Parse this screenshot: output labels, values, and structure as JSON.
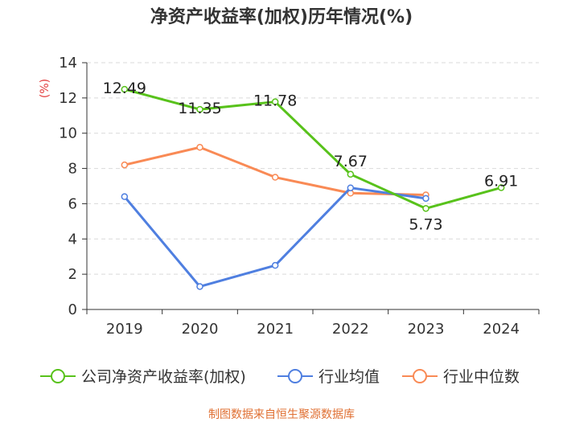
{
  "chart_data": {
    "type": "line",
    "title": "净资产收益率(加权)历年情况(%)",
    "ylabel": "(%)",
    "xlabel": "",
    "categories": [
      "2019",
      "2020",
      "2021",
      "2022",
      "2023",
      "2024"
    ],
    "ylim": [
      0,
      14
    ],
    "yticks": [
      0,
      2,
      4,
      6,
      8,
      10,
      12,
      14
    ],
    "grid": true,
    "legend_position": "bottom",
    "series": [
      {
        "name": "公司净资产收益率(加权)",
        "color": "#58c21b",
        "values": [
          12.49,
          11.35,
          11.78,
          7.67,
          5.73,
          6.91
        ],
        "labels": [
          "12.49",
          "11.35",
          "11.78",
          "7.67",
          "5.73",
          "6.91"
        ]
      },
      {
        "name": "行业均值",
        "color": "#4f7fe0",
        "values": [
          6.4,
          1.3,
          2.5,
          6.9,
          6.3,
          null
        ]
      },
      {
        "name": "行业中位数",
        "color": "#f98a55",
        "values": [
          8.2,
          9.2,
          7.5,
          6.6,
          6.5,
          null
        ]
      }
    ],
    "source": "制图数据来自恒生聚源数据库",
    "source_color": "#e07033",
    "ylabel_color": "#e23b3b"
  }
}
